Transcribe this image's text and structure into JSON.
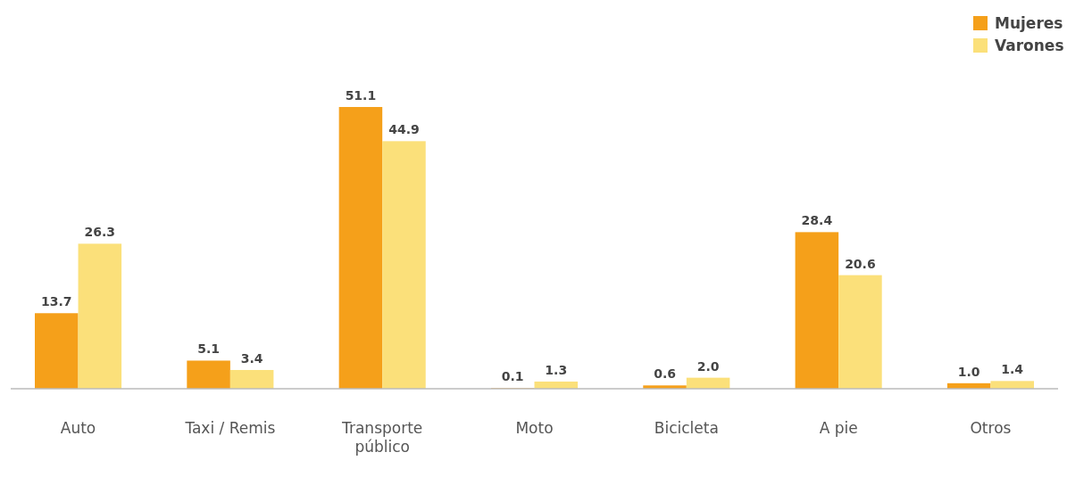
{
  "chart_data": {
    "type": "bar",
    "categories": [
      "Auto",
      "Taxi / Remis",
      "Transporte público",
      "Moto",
      "Bicicleta",
      "A pie",
      "Otros"
    ],
    "series": [
      {
        "name": "Mujeres",
        "color": "#f5a01a",
        "values": [
          13.7,
          5.1,
          51.1,
          0.1,
          0.6,
          28.4,
          1.0
        ],
        "value_labels": [
          "13.7",
          "5.1",
          "51.1",
          "0.1",
          "0.6",
          "28.4",
          "1.0"
        ]
      },
      {
        "name": "Varones",
        "color": "#fbe07a",
        "values": [
          26.3,
          3.4,
          44.9,
          1.3,
          2.0,
          20.6,
          1.4
        ],
        "value_labels": [
          "26.3",
          "3.4",
          "44.9",
          "1.3",
          "2.0",
          "20.6",
          "1.4"
        ]
      }
    ],
    "legend": "top right"
  }
}
